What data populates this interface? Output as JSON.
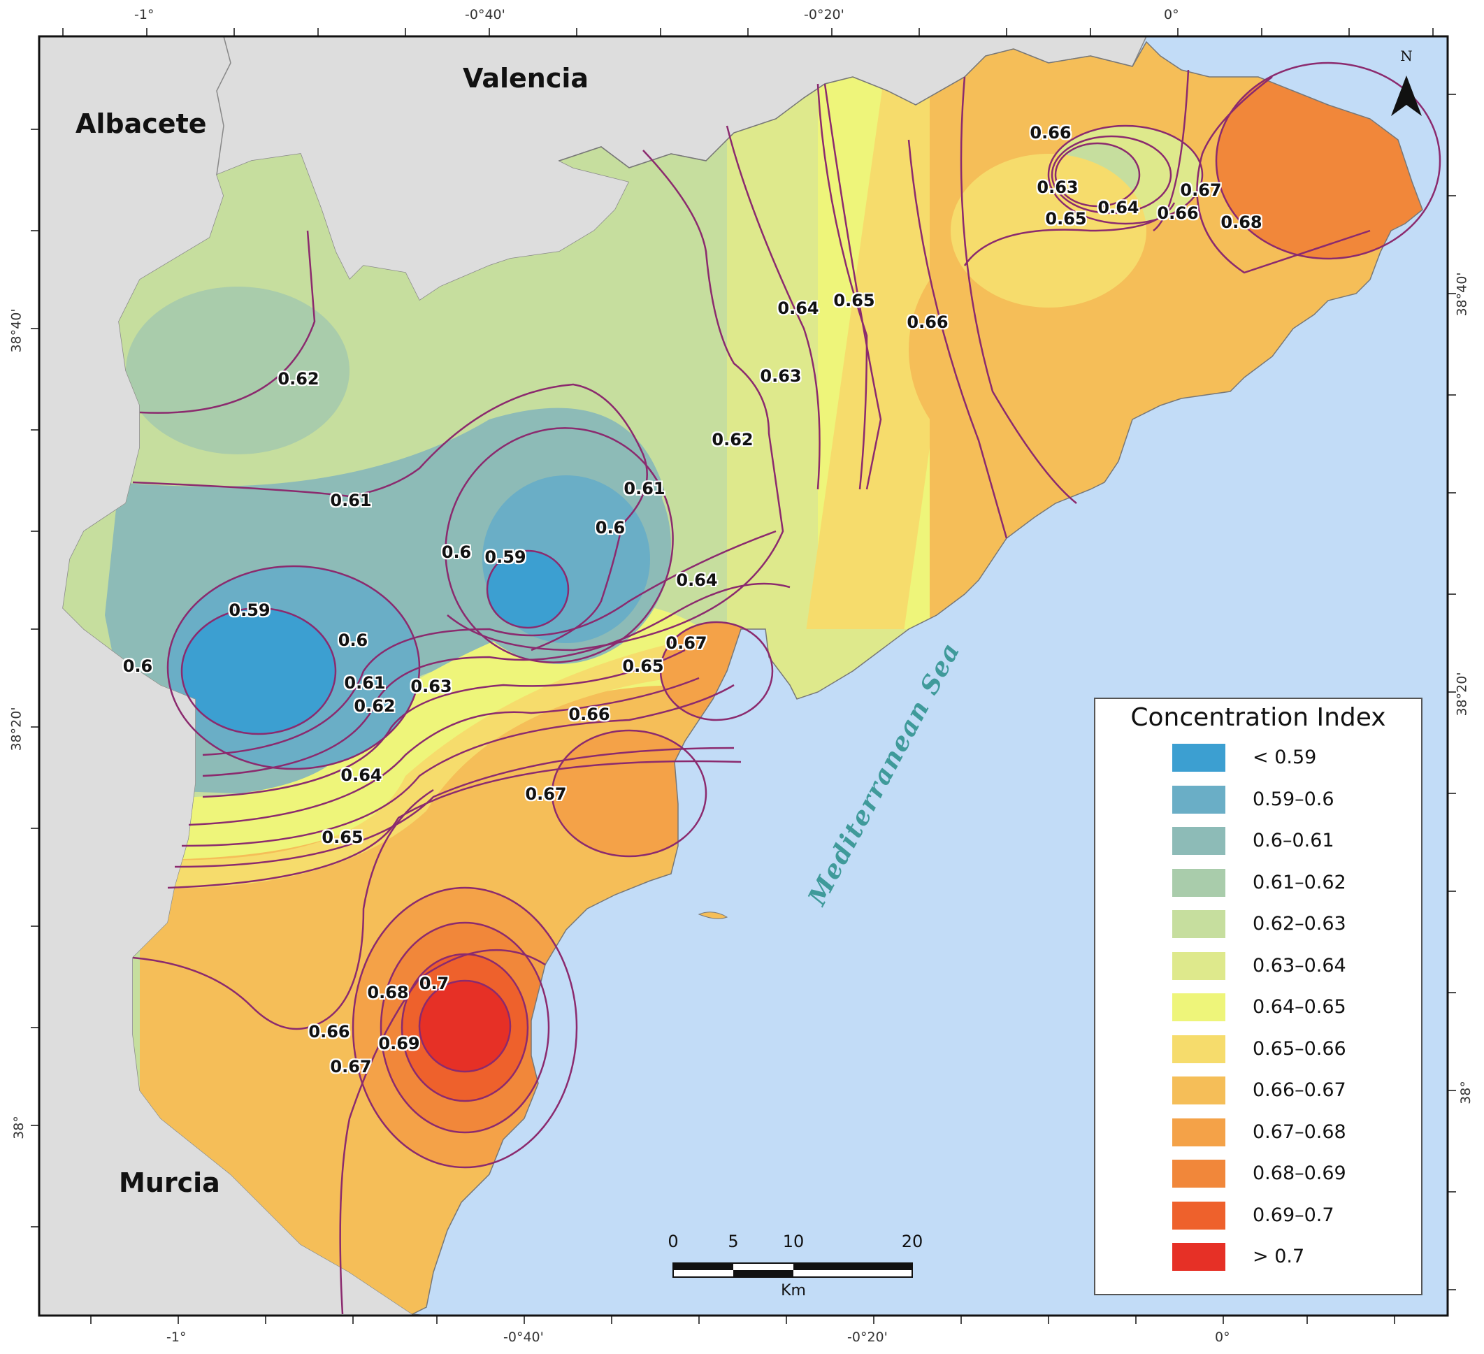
{
  "map": {
    "regions": {
      "albacete": "Albacete",
      "valencia": "Valencia",
      "murcia": "Murcia"
    },
    "sea_label": "Mediterranean Sea",
    "contour_labels": [
      "0.66",
      "0.63",
      "0.64",
      "0.65",
      "0.67",
      "0.66",
      "0.68",
      "0.64",
      "0.65",
      "0.66",
      "0.63",
      "0.62",
      "0.62",
      "0.61",
      "0.61",
      "0.6",
      "0.6",
      "0.59",
      "0.59",
      "0.6",
      "0.6",
      "0.61",
      "0.62",
      "0.63",
      "0.64",
      "0.64",
      "0.65",
      "0.67",
      "0.65",
      "0.66",
      "0.67",
      "0.68",
      "0.7",
      "0.66",
      "0.69",
      "0.67"
    ],
    "colors": {
      "sea": "#c2dcf7",
      "land_neighbors": "#dddddd",
      "contour_line": "#8b2a6e"
    }
  },
  "axes": {
    "top_lon": [
      "-1°",
      "-0°40'",
      "-0°20'",
      "0°"
    ],
    "bottom_lon": [
      "-1°",
      "-0°40'",
      "-0°20'",
      "0°"
    ],
    "left_lat": [
      "38°40'",
      "38°20'",
      "38°"
    ],
    "right_lat": [
      "38°40'",
      "38°20'",
      "38°"
    ]
  },
  "legend": {
    "title": "Concentration Index",
    "items": [
      {
        "label": "< 0.59",
        "color": "#3c9fd1"
      },
      {
        "label": "0.59–0.6",
        "color": "#6aaec6"
      },
      {
        "label": "0.6–0.61",
        "color": "#8dbbb7"
      },
      {
        "label": "0.61–0.62",
        "color": "#a9ccab"
      },
      {
        "label": "0.62–0.63",
        "color": "#c6de9e"
      },
      {
        "label": "0.63–0.64",
        "color": "#dee98c"
      },
      {
        "label": "0.64–0.65",
        "color": "#eef57a"
      },
      {
        "label": "0.65–0.66",
        "color": "#f6dc6c"
      },
      {
        "label": "0.66–0.67",
        "color": "#f5be58"
      },
      {
        "label": "0.67–0.68",
        "color": "#f4a248"
      },
      {
        "label": "0.68–0.69",
        "color": "#f1873a"
      },
      {
        "label": "0.69–0.7",
        "color": "#ee612c"
      },
      {
        "label": "> 0.7",
        "color": "#e63026"
      }
    ]
  },
  "scale_bar": {
    "ticks": [
      "0",
      "5",
      "10",
      "20"
    ],
    "unit": "Km"
  },
  "north_arrow": {
    "letter": "N"
  }
}
